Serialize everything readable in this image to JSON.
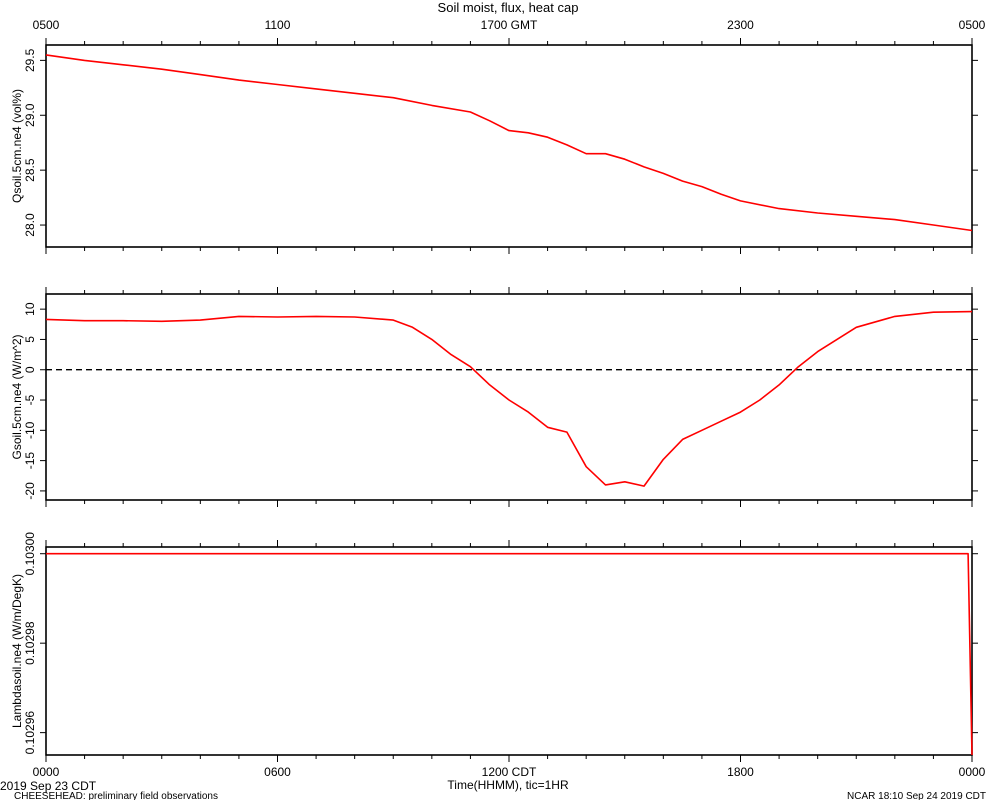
{
  "figure": {
    "title": "Soil moist, flux, heat cap",
    "top_axis_ticks": [
      "0500",
      "1100",
      "1700 GMT",
      "2300",
      "0500"
    ],
    "bottom_axis_ticks": [
      "0000",
      "0600",
      "1200 CDT",
      "1800",
      "0000"
    ],
    "xlabel": "Time(HHMM), tic=1HR",
    "start_date": "2019 Sep 23 CDT",
    "footer_left": "CHEESEHEAD: preliminary field observations",
    "footer_right": "NCAR 18:10 Sep 24 2019 CDT",
    "line_color": "#ff0000"
  },
  "chart_data": [
    {
      "type": "line",
      "ylabel": "Qsoil.5cm.ne4 (vol%)",
      "ylim": [
        27.8,
        29.64
      ],
      "yticks": [
        28.0,
        28.5,
        29.0,
        29.5
      ],
      "ytick_labels": [
        "28.0",
        "28.5",
        "29.0",
        "29.5"
      ],
      "xlim": [
        0,
        24
      ],
      "x": [
        0,
        1,
        2,
        3,
        4,
        5,
        6,
        7,
        8,
        9,
        10,
        11,
        11.5,
        12,
        12.5,
        13,
        13.5,
        14,
        14.5,
        15,
        15.5,
        16,
        16.5,
        17,
        17.5,
        18,
        19,
        20,
        21,
        22,
        23,
        24
      ],
      "series": [
        {
          "values": [
            29.55,
            29.5,
            29.46,
            29.42,
            29.37,
            29.32,
            29.28,
            29.24,
            29.2,
            29.16,
            29.09,
            29.03,
            28.95,
            28.86,
            28.84,
            28.8,
            28.73,
            28.65,
            28.65,
            28.6,
            28.53,
            28.47,
            28.4,
            28.35,
            28.28,
            28.22,
            28.15,
            28.11,
            28.08,
            28.05,
            28.0,
            27.95
          ]
        }
      ]
    },
    {
      "type": "line",
      "ylabel": "Gsoil.5cm.ne4 (W/m^2)",
      "ylim": [
        -21.5,
        12.5
      ],
      "yticks": [
        10,
        5,
        0,
        -5,
        -10,
        -15,
        -20
      ],
      "ytick_labels": [
        "10",
        "5",
        "0",
        "-5",
        "-10",
        "-15",
        "-20"
      ],
      "zero_line": 0,
      "xlim": [
        0,
        24
      ],
      "x": [
        0,
        1,
        2,
        3,
        4,
        5,
        6,
        7,
        8,
        9,
        9.5,
        10,
        10.5,
        11,
        11.5,
        12,
        12.5,
        13,
        13.5,
        14,
        14.5,
        15,
        15.5,
        16,
        16.5,
        17,
        17.5,
        18,
        18.5,
        19,
        19.5,
        20,
        20.5,
        21,
        22,
        23,
        24
      ],
      "series": [
        {
          "values": [
            8.3,
            8.1,
            8.1,
            8.0,
            8.2,
            8.8,
            8.7,
            8.8,
            8.7,
            8.2,
            7.0,
            5.0,
            2.5,
            0.5,
            -2.5,
            -5.0,
            -7.0,
            -9.5,
            -10.3,
            -16.0,
            -19.0,
            -18.5,
            -19.2,
            -14.8,
            -11.5,
            -10.0,
            -8.5,
            -7.0,
            -5.0,
            -2.5,
            0.5,
            3.0,
            5.0,
            7.0,
            8.8,
            9.5,
            9.6
          ]
        }
      ]
    },
    {
      "type": "line",
      "ylabel": "Lambdasoil.ne4 (W/m/DegK)",
      "ylim": [
        0.102955,
        0.1030015
      ],
      "yticks": [
        0.103,
        0.10298,
        0.10296
      ],
      "ytick_labels": [
        "0.10300",
        "0.10298",
        "0.10296"
      ],
      "xlim": [
        0,
        24
      ],
      "x": [
        0,
        23.9,
        24
      ],
      "series": [
        {
          "values": [
            0.103,
            0.103,
            0.102955
          ]
        }
      ]
    }
  ]
}
